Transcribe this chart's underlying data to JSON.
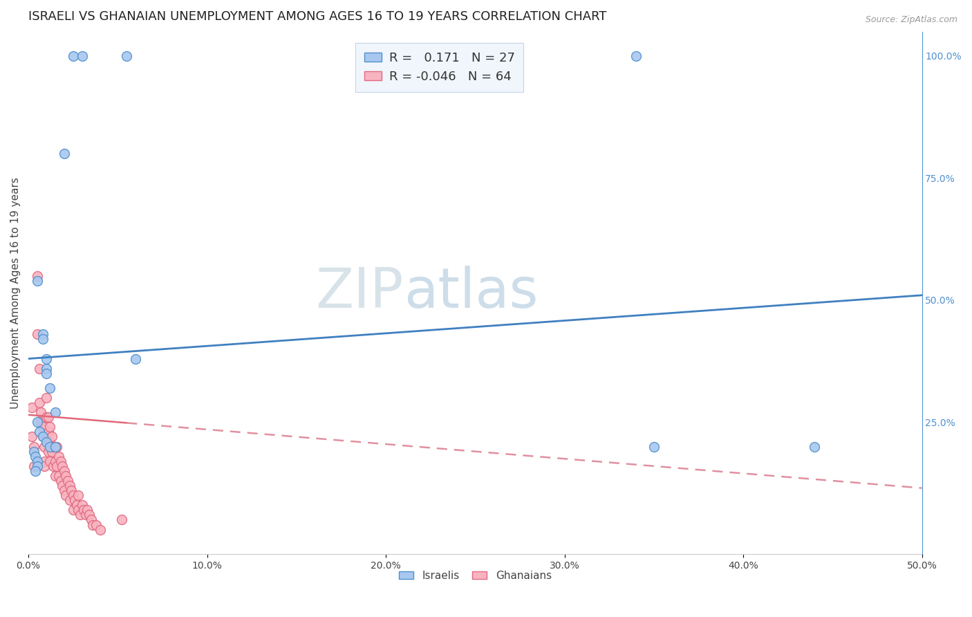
{
  "title": "ISRAELI VS GHANAIAN UNEMPLOYMENT AMONG AGES 16 TO 19 YEARS CORRELATION CHART",
  "source": "Source: ZipAtlas.com",
  "ylabel": "Unemployment Among Ages 16 to 19 years",
  "xlim": [
    0.0,
    0.5
  ],
  "ylim": [
    -0.02,
    1.05
  ],
  "x_ticks": [
    0.0,
    0.1,
    0.2,
    0.3,
    0.4,
    0.5
  ],
  "x_tick_labels": [
    "0.0%",
    "10.0%",
    "20.0%",
    "30.0%",
    "40.0%",
    "50.0%"
  ],
  "y_ticks_right": [
    0.25,
    0.5,
    0.75,
    1.0
  ],
  "y_tick_labels_right": [
    "25.0%",
    "50.0%",
    "75.0%",
    "100.0%"
  ],
  "grid_color": "#cccccc",
  "background_color": "#ffffff",
  "watermark": "ZIPatlas",
  "watermark_color": "#c5d8ed",
  "israeli_color": "#a8c8f0",
  "ghanaian_color": "#f8b4c0",
  "israeli_edge_color": "#5090c8",
  "ghanaian_edge_color": "#e06880",
  "blue_line_color": "#4080c0",
  "pink_line_color": "#e06878",
  "pink_dash_color": "#e090a0",
  "R_israeli": 0.171,
  "N_israeli": 27,
  "R_ghanaian": -0.046,
  "N_ghanaian": 64,
  "israeli_x": [
    0.02,
    0.025,
    0.03,
    0.055,
    0.005,
    0.008,
    0.008,
    0.01,
    0.01,
    0.01,
    0.012,
    0.015,
    0.005,
    0.006,
    0.008,
    0.01,
    0.012,
    0.015,
    0.003,
    0.004,
    0.005,
    0.44,
    0.35,
    0.34,
    0.06,
    0.005,
    0.004
  ],
  "israeli_y": [
    0.8,
    1.0,
    1.0,
    1.0,
    0.54,
    0.43,
    0.42,
    0.38,
    0.36,
    0.35,
    0.32,
    0.27,
    0.25,
    0.23,
    0.22,
    0.21,
    0.2,
    0.2,
    0.19,
    0.18,
    0.17,
    0.2,
    0.2,
    1.0,
    0.38,
    0.16,
    0.15
  ],
  "ghanaian_x": [
    0.002,
    0.002,
    0.003,
    0.003,
    0.005,
    0.005,
    0.006,
    0.006,
    0.007,
    0.007,
    0.008,
    0.008,
    0.009,
    0.009,
    0.009,
    0.01,
    0.01,
    0.01,
    0.011,
    0.011,
    0.011,
    0.012,
    0.012,
    0.012,
    0.013,
    0.013,
    0.014,
    0.014,
    0.015,
    0.015,
    0.015,
    0.016,
    0.016,
    0.017,
    0.017,
    0.018,
    0.018,
    0.019,
    0.019,
    0.02,
    0.02,
    0.021,
    0.021,
    0.022,
    0.023,
    0.023,
    0.024,
    0.025,
    0.025,
    0.026,
    0.027,
    0.028,
    0.028,
    0.029,
    0.03,
    0.031,
    0.032,
    0.033,
    0.034,
    0.035,
    0.036,
    0.038,
    0.04,
    0.052
  ],
  "ghanaian_y": [
    0.28,
    0.22,
    0.2,
    0.16,
    0.55,
    0.43,
    0.36,
    0.29,
    0.27,
    0.25,
    0.24,
    0.22,
    0.2,
    0.17,
    0.16,
    0.3,
    0.26,
    0.22,
    0.26,
    0.23,
    0.19,
    0.24,
    0.21,
    0.17,
    0.22,
    0.19,
    0.2,
    0.16,
    0.2,
    0.17,
    0.14,
    0.2,
    0.16,
    0.18,
    0.14,
    0.17,
    0.13,
    0.16,
    0.12,
    0.15,
    0.11,
    0.14,
    0.1,
    0.13,
    0.12,
    0.09,
    0.11,
    0.1,
    0.07,
    0.09,
    0.08,
    0.1,
    0.07,
    0.06,
    0.08,
    0.07,
    0.06,
    0.07,
    0.06,
    0.05,
    0.04,
    0.04,
    0.03,
    0.05
  ],
  "legend_box_color": "#eef4fc",
  "legend_border_color": "#b8cce0",
  "title_fontsize": 13,
  "label_fontsize": 11,
  "tick_fontsize": 10,
  "legend_fontsize": 13,
  "marker_size": 10,
  "blue_line_intercept": 0.38,
  "blue_line_slope": 0.26,
  "pink_line_intercept": 0.265,
  "pink_line_slope": -0.3
}
